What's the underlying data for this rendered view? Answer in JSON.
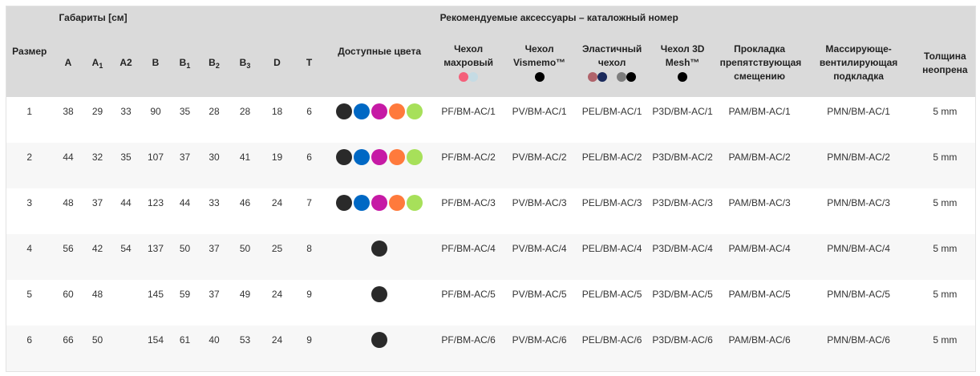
{
  "header": {
    "size": "Размер",
    "dimensions": "Габариты [см]",
    "colors": "Доступные цвета",
    "accessories": "Рекомендуемые аксессуары – каталожный номер",
    "dims": [
      {
        "l": "A",
        "s": ""
      },
      {
        "l": "A",
        "s": "1"
      },
      {
        "l": "A2",
        "s": ""
      },
      {
        "l": "B",
        "s": ""
      },
      {
        "l": "B",
        "s": "1"
      },
      {
        "l": "B",
        "s": "2"
      },
      {
        "l": "B",
        "s": "3"
      },
      {
        "l": "D",
        "s": ""
      },
      {
        "l": "T",
        "s": ""
      }
    ],
    "acc": [
      {
        "label": "Чехол махровый",
        "swatches": [
          "#f4607a",
          "#c5dbe4"
        ]
      },
      {
        "label": "Чехол Vismemo™",
        "swatches": [
          "#000000"
        ]
      },
      {
        "label": "Эластичный чехол",
        "swatches": [
          "#b0636b",
          "#1b2a5c",
          "#d9d9d9",
          "#7d7d7d",
          "#000000"
        ]
      },
      {
        "label": "Чехол 3D Mesh™",
        "swatches": [
          "#000000"
        ]
      },
      {
        "label": "Прокладка препятствующая смещению",
        "swatches": []
      },
      {
        "label": "Массирующе-вентилирующая подкладка",
        "swatches": []
      },
      {
        "label": "Толщина неопрена",
        "swatches": []
      }
    ]
  },
  "rows": [
    {
      "size": "1",
      "dims": [
        "38",
        "29",
        "33",
        "90",
        "35",
        "28",
        "28",
        "18",
        "6"
      ],
      "colors": [
        "#2a2a2a",
        "#0068c4",
        "#c61aa5",
        "#ff7a3c",
        "#a7e05a"
      ],
      "acc": [
        "PF/BM-AC/1",
        "PV/BM-AC/1",
        "PEL/BM-AC/1",
        "P3D/BM-AC/1",
        "PAM/BM-AC/1",
        "PMN/BM-AC/1",
        "5 mm"
      ]
    },
    {
      "size": "2",
      "dims": [
        "44",
        "32",
        "35",
        "107",
        "37",
        "30",
        "41",
        "19",
        "6"
      ],
      "colors": [
        "#2a2a2a",
        "#0068c4",
        "#c61aa5",
        "#ff7a3c",
        "#a7e05a"
      ],
      "acc": [
        "PF/BM-AC/2",
        "PV/BM-AC/2",
        "PEL/BM-AC/2",
        "P3D/BM-AC/2",
        "PAM/BM-AC/2",
        "PMN/BM-AC/2",
        "5 mm"
      ]
    },
    {
      "size": "3",
      "dims": [
        "48",
        "37",
        "44",
        "123",
        "44",
        "33",
        "46",
        "24",
        "7"
      ],
      "colors": [
        "#2a2a2a",
        "#0068c4",
        "#c61aa5",
        "#ff7a3c",
        "#a7e05a"
      ],
      "acc": [
        "PF/BM-AC/3",
        "PV/BM-AC/3",
        "PEL/BM-AC/3",
        "P3D/BM-AC/3",
        "PAM/BM-AC/3",
        "PMN/BM-AC/3",
        "5 mm"
      ]
    },
    {
      "size": "4",
      "dims": [
        "56",
        "42",
        "54",
        "137",
        "50",
        "37",
        "50",
        "25",
        "8"
      ],
      "colors": [
        "#2a2a2a"
      ],
      "acc": [
        "PF/BM-AC/4",
        "PV/BM-AC/4",
        "PEL/BM-AC/4",
        "P3D/BM-AC/4",
        "PAM/BM-AC/4",
        "PMN/BM-AC/4",
        "5 mm"
      ]
    },
    {
      "size": "5",
      "dims": [
        "60",
        "48",
        "",
        "145",
        "59",
        "37",
        "49",
        "24",
        "9"
      ],
      "colors": [
        "#2a2a2a"
      ],
      "acc": [
        "PF/BM-AC/5",
        "PV/BM-AC/5",
        "PEL/BM-AC/5",
        "P3D/BM-AC/5",
        "PAM/BM-AC/5",
        "PMN/BM-AC/5",
        "5 mm"
      ]
    },
    {
      "size": "6",
      "dims": [
        "66",
        "50",
        "",
        "154",
        "61",
        "40",
        "53",
        "24",
        "9"
      ],
      "colors": [
        "#2a2a2a"
      ],
      "acc": [
        "PF/BM-AC/6",
        "PV/BM-AC/6",
        "PEL/BM-AC/6",
        "P3D/BM-AC/6",
        "PAM/BM-AC/6",
        "PMN/BM-AC/6",
        "5 mm"
      ]
    }
  ]
}
